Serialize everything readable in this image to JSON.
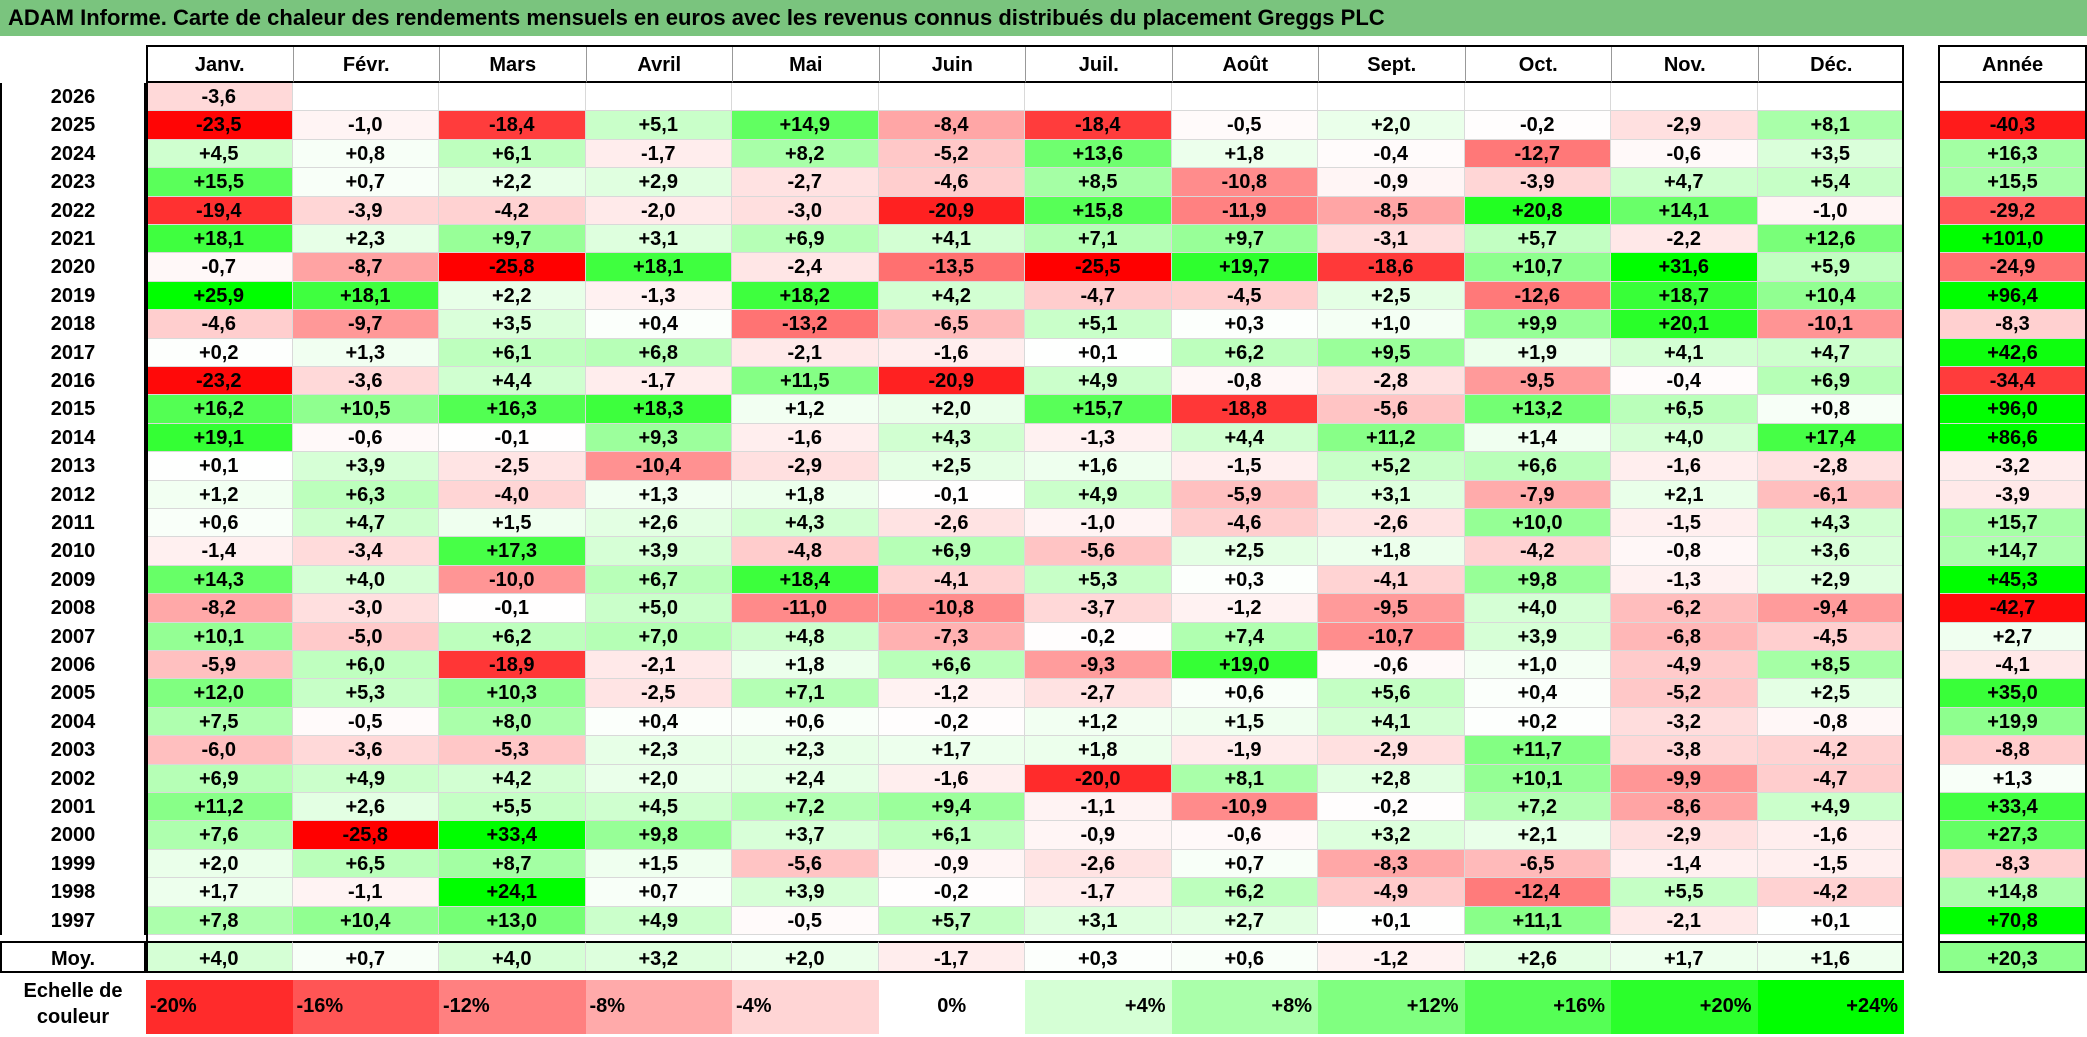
{
  "title": "ADAM Informe. Carte de chaleur des rendements mensuels en euros avec les revenus connus distribués du placement Greggs PLC",
  "colors": {
    "title_bg": "#7ac47e",
    "positive_max": "#00ff00",
    "negative_max": "#ff0000",
    "neutral": "#ffffff"
  },
  "chart_data": {
    "type": "heatmap",
    "title": "ADAM Informe. Carte de chaleur des rendements mensuels en euros avec les revenus connus distribués du placement Greggs PLC",
    "months": [
      "Janv.",
      "Févr.",
      "Mars",
      "Avril",
      "Mai",
      "Juin",
      "Juil.",
      "Août",
      "Sept.",
      "Oct.",
      "Nov.",
      "Déc."
    ],
    "annual_label": "Année",
    "average_label": "Moy.",
    "rows": [
      {
        "year": "2026",
        "values": [
          "-3,6",
          "",
          "",
          "",
          "",
          "",
          "",
          "",
          "",
          "",
          "",
          ""
        ],
        "annual": ""
      },
      {
        "year": "2025",
        "values": [
          "-23,5",
          "-1,0",
          "-18,4",
          "+5,1",
          "+14,9",
          "-8,4",
          "-18,4",
          "-0,5",
          "+2,0",
          "-0,2",
          "-2,9",
          "+8,1"
        ],
        "annual": "-40,3"
      },
      {
        "year": "2024",
        "values": [
          "+4,5",
          "+0,8",
          "+6,1",
          "-1,7",
          "+8,2",
          "-5,2",
          "+13,6",
          "+1,8",
          "-0,4",
          "-12,7",
          "-0,6",
          "+3,5"
        ],
        "annual": "+16,3"
      },
      {
        "year": "2023",
        "values": [
          "+15,5",
          "+0,7",
          "+2,2",
          "+2,9",
          "-2,7",
          "-4,6",
          "+8,5",
          "-10,8",
          "-0,9",
          "-3,9",
          "+4,7",
          "+5,4"
        ],
        "annual": "+15,5"
      },
      {
        "year": "2022",
        "values": [
          "-19,4",
          "-3,9",
          "-4,2",
          "-2,0",
          "-3,0",
          "-20,9",
          "+15,8",
          "-11,9",
          "-8,5",
          "+20,8",
          "+14,1",
          "-1,0"
        ],
        "annual": "-29,2"
      },
      {
        "year": "2021",
        "values": [
          "+18,1",
          "+2,3",
          "+9,7",
          "+3,1",
          "+6,9",
          "+4,1",
          "+7,1",
          "+9,7",
          "-3,1",
          "+5,7",
          "-2,2",
          "+12,6"
        ],
        "annual": "+101,0"
      },
      {
        "year": "2020",
        "values": [
          "-0,7",
          "-8,7",
          "-25,8",
          "+18,1",
          "-2,4",
          "-13,5",
          "-25,5",
          "+19,7",
          "-18,6",
          "+10,7",
          "+31,6",
          "+5,9"
        ],
        "annual": "-24,9"
      },
      {
        "year": "2019",
        "values": [
          "+25,9",
          "+18,1",
          "+2,2",
          "-1,3",
          "+18,2",
          "+4,2",
          "-4,7",
          "-4,5",
          "+2,5",
          "-12,6",
          "+18,7",
          "+10,4"
        ],
        "annual": "+96,4"
      },
      {
        "year": "2018",
        "values": [
          "-4,6",
          "-9,7",
          "+3,5",
          "+0,4",
          "-13,2",
          "-6,5",
          "+5,1",
          "+0,3",
          "+1,0",
          "+9,9",
          "+20,1",
          "-10,1"
        ],
        "annual": "-8,3"
      },
      {
        "year": "2017",
        "values": [
          "+0,2",
          "+1,3",
          "+6,1",
          "+6,8",
          "-2,1",
          "-1,6",
          "+0,1",
          "+6,2",
          "+9,5",
          "+1,9",
          "+4,1",
          "+4,7"
        ],
        "annual": "+42,6"
      },
      {
        "year": "2016",
        "values": [
          "-23,2",
          "-3,6",
          "+4,4",
          "-1,7",
          "+11,5",
          "-20,9",
          "+4,9",
          "-0,8",
          "-2,8",
          "-9,5",
          "-0,4",
          "+6,9"
        ],
        "annual": "-34,4"
      },
      {
        "year": "2015",
        "values": [
          "+16,2",
          "+10,5",
          "+16,3",
          "+18,3",
          "+1,2",
          "+2,0",
          "+15,7",
          "-18,8",
          "-5,6",
          "+13,2",
          "+6,5",
          "+0,8"
        ],
        "annual": "+96,0"
      },
      {
        "year": "2014",
        "values": [
          "+19,1",
          "-0,6",
          "-0,1",
          "+9,3",
          "-1,6",
          "+4,3",
          "-1,3",
          "+4,4",
          "+11,2",
          "+1,4",
          "+4,0",
          "+17,4"
        ],
        "annual": "+86,6"
      },
      {
        "year": "2013",
        "values": [
          "+0,1",
          "+3,9",
          "-2,5",
          "-10,4",
          "-2,9",
          "+2,5",
          "+1,6",
          "-1,5",
          "+5,2",
          "+6,6",
          "-1,6",
          "-2,8"
        ],
        "annual": "-3,2"
      },
      {
        "year": "2012",
        "values": [
          "+1,2",
          "+6,3",
          "-4,0",
          "+1,3",
          "+1,8",
          "-0,1",
          "+4,9",
          "-5,9",
          "+3,1",
          "-7,9",
          "+2,1",
          "-6,1"
        ],
        "annual": "-3,9"
      },
      {
        "year": "2011",
        "values": [
          "+0,6",
          "+4,7",
          "+1,5",
          "+2,6",
          "+4,3",
          "-2,6",
          "-1,0",
          "-4,6",
          "-2,6",
          "+10,0",
          "-1,5",
          "+4,3"
        ],
        "annual": "+15,7"
      },
      {
        "year": "2010",
        "values": [
          "-1,4",
          "-3,4",
          "+17,3",
          "+3,9",
          "-4,8",
          "+6,9",
          "-5,6",
          "+2,5",
          "+1,8",
          "-4,2",
          "-0,8",
          "+3,6"
        ],
        "annual": "+14,7"
      },
      {
        "year": "2009",
        "values": [
          "+14,3",
          "+4,0",
          "-10,0",
          "+6,7",
          "+18,4",
          "-4,1",
          "+5,3",
          "+0,3",
          "-4,1",
          "+9,8",
          "-1,3",
          "+2,9"
        ],
        "annual": "+45,3"
      },
      {
        "year": "2008",
        "values": [
          "-8,2",
          "-3,0",
          "-0,1",
          "+5,0",
          "-11,0",
          "-10,8",
          "-3,7",
          "-1,2",
          "-9,5",
          "+4,0",
          "-6,2",
          "-9,4"
        ],
        "annual": "-42,7"
      },
      {
        "year": "2007",
        "values": [
          "+10,1",
          "-5,0",
          "+6,2",
          "+7,0",
          "+4,8",
          "-7,3",
          "-0,2",
          "+7,4",
          "-10,7",
          "+3,9",
          "-6,8",
          "-4,5"
        ],
        "annual": "+2,7"
      },
      {
        "year": "2006",
        "values": [
          "-5,9",
          "+6,0",
          "-18,9",
          "-2,1",
          "+1,8",
          "+6,6",
          "-9,3",
          "+19,0",
          "-0,6",
          "+1,0",
          "-4,9",
          "+8,5"
        ],
        "annual": "-4,1"
      },
      {
        "year": "2005",
        "values": [
          "+12,0",
          "+5,3",
          "+10,3",
          "-2,5",
          "+7,1",
          "-1,2",
          "-2,7",
          "+0,6",
          "+5,6",
          "+0,4",
          "-5,2",
          "+2,5"
        ],
        "annual": "+35,0"
      },
      {
        "year": "2004",
        "values": [
          "+7,5",
          "-0,5",
          "+8,0",
          "+0,4",
          "+0,6",
          "-0,2",
          "+1,2",
          "+1,5",
          "+4,1",
          "+0,2",
          "-3,2",
          "-0,8"
        ],
        "annual": "+19,9"
      },
      {
        "year": "2003",
        "values": [
          "-6,0",
          "-3,6",
          "-5,3",
          "+2,3",
          "+2,3",
          "+1,7",
          "+1,8",
          "-1,9",
          "-2,9",
          "+11,7",
          "-3,8",
          "-4,2"
        ],
        "annual": "-8,8"
      },
      {
        "year": "2002",
        "values": [
          "+6,9",
          "+4,9",
          "+4,2",
          "+2,0",
          "+2,4",
          "-1,6",
          "-20,0",
          "+8,1",
          "+2,8",
          "+10,1",
          "-9,9",
          "-4,7"
        ],
        "annual": "+1,3"
      },
      {
        "year": "2001",
        "values": [
          "+11,2",
          "+2,6",
          "+5,5",
          "+4,5",
          "+7,2",
          "+9,4",
          "-1,1",
          "-10,9",
          "-0,2",
          "+7,2",
          "-8,6",
          "+4,9"
        ],
        "annual": "+33,4"
      },
      {
        "year": "2000",
        "values": [
          "+7,6",
          "-25,8",
          "+33,4",
          "+9,8",
          "+3,7",
          "+6,1",
          "-0,9",
          "-0,6",
          "+3,2",
          "+2,1",
          "-2,9",
          "-1,6"
        ],
        "annual": "+27,3"
      },
      {
        "year": "1999",
        "values": [
          "+2,0",
          "+6,5",
          "+8,7",
          "+1,5",
          "-5,6",
          "-0,9",
          "-2,6",
          "+0,7",
          "-8,3",
          "-6,5",
          "-1,4",
          "-1,5"
        ],
        "annual": "-8,3"
      },
      {
        "year": "1998",
        "values": [
          "+1,7",
          "-1,1",
          "+24,1",
          "+0,7",
          "+3,9",
          "-0,2",
          "-1,7",
          "+6,2",
          "-4,9",
          "-12,4",
          "+5,5",
          "-4,2"
        ],
        "annual": "+14,8"
      },
      {
        "year": "1997",
        "values": [
          "+7,8",
          "+10,4",
          "+13,0",
          "+4,9",
          "-0,5",
          "+5,7",
          "+3,1",
          "+2,7",
          "+0,1",
          "+11,1",
          "-2,1",
          "+0,1"
        ],
        "annual": "+70,8"
      }
    ],
    "average": {
      "values": [
        "+4,0",
        "+0,7",
        "+4,0",
        "+3,2",
        "+2,0",
        "-1,7",
        "+0,3",
        "+0,6",
        "-1,2",
        "+2,6",
        "+1,7",
        "+1,6"
      ],
      "annual": "+20,3"
    },
    "scale": {
      "label": "Echelle de couleur",
      "items": [
        {
          "label": "-20%",
          "value": -20
        },
        {
          "label": "-16%",
          "value": -16
        },
        {
          "label": "-12%",
          "value": -12
        },
        {
          "label": "-8%",
          "value": -8
        },
        {
          "label": "-4%",
          "value": -4
        },
        {
          "label": "0%",
          "value": 0
        },
        {
          "label": "+4%",
          "value": 4
        },
        {
          "label": "+8%",
          "value": 8
        },
        {
          "label": "+12%",
          "value": 12
        },
        {
          "label": "+16%",
          "value": 16
        },
        {
          "label": "+20%",
          "value": 20
        },
        {
          "label": "+24%",
          "value": 24
        }
      ]
    }
  }
}
